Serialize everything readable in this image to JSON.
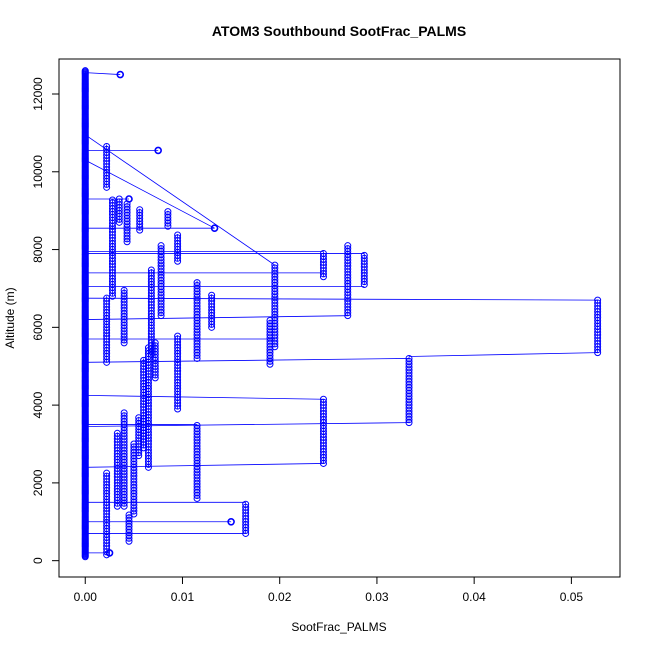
{
  "chart_data": {
    "type": "scatter",
    "title": "ATOM3 Southbound SootFrac_PALMS",
    "xlabel": "SootFrac_PALMS",
    "ylabel": "Altitude (m)",
    "xlim": [
      -0.0027,
      0.055
    ],
    "ylim": [
      -420,
      12900
    ],
    "xticks": [
      0,
      0.01,
      0.02,
      0.03,
      0.04,
      0.05
    ],
    "xtick_labels": [
      "0.00",
      "0.01",
      "0.02",
      "0.03",
      "0.04",
      "0.05"
    ],
    "yticks": [
      0,
      2000,
      4000,
      6000,
      8000,
      10000,
      12000
    ],
    "ytick_labels": [
      "0",
      "2000",
      "4000",
      "6000",
      "8000",
      "10000",
      "12000"
    ],
    "series_color": "#0000ff",
    "marker": "open-circle",
    "line_style": "connected-points",
    "columns": [
      {
        "x": 0,
        "y0": 100,
        "y1": 12600
      },
      {
        "x": 0.0022,
        "y0": 150,
        "y1": 2250
      },
      {
        "x": 0.0022,
        "y0": 5100,
        "y1": 6800
      },
      {
        "x": 0.0022,
        "y0": 9600,
        "y1": 10700
      },
      {
        "x": 0.0028,
        "y0": 6800,
        "y1": 9300
      },
      {
        "x": 0.0033,
        "y0": 1400,
        "y1": 3300
      },
      {
        "x": 0.0035,
        "y0": 8700,
        "y1": 9300
      },
      {
        "x": 0.004,
        "y0": 1400,
        "y1": 3800
      },
      {
        "x": 0.004,
        "y0": 5600,
        "y1": 7000
      },
      {
        "x": 0.0043,
        "y0": 8200,
        "y1": 9200
      },
      {
        "x": 0.0045,
        "y0": 500,
        "y1": 1200
      },
      {
        "x": 0.005,
        "y0": 1200,
        "y1": 3000
      },
      {
        "x": 0.0055,
        "y0": 2700,
        "y1": 3700
      },
      {
        "x": 0.0056,
        "y0": 8500,
        "y1": 9050
      },
      {
        "x": 0.006,
        "y0": 2900,
        "y1": 5200
      },
      {
        "x": 0.0065,
        "y0": 2400,
        "y1": 5500
      },
      {
        "x": 0.0068,
        "y0": 5300,
        "y1": 7500
      },
      {
        "x": 0.0072,
        "y0": 4700,
        "y1": 5600
      },
      {
        "x": 0.0078,
        "y0": 6300,
        "y1": 8100
      },
      {
        "x": 0.0085,
        "y0": 8600,
        "y1": 9000
      },
      {
        "x": 0.0095,
        "y0": 3900,
        "y1": 5800
      },
      {
        "x": 0.0095,
        "y0": 7700,
        "y1": 8400
      },
      {
        "x": 0.0115,
        "y0": 1600,
        "y1": 3500
      },
      {
        "x": 0.0115,
        "y0": 5200,
        "y1": 7200
      },
      {
        "x": 0.013,
        "y0": 6000,
        "y1": 6850
      },
      {
        "x": 0.0165,
        "y0": 700,
        "y1": 1500
      },
      {
        "x": 0.019,
        "y0": 5050,
        "y1": 6200
      },
      {
        "x": 0.0195,
        "y0": 5500,
        "y1": 7600
      },
      {
        "x": 0.0245,
        "y0": 2500,
        "y1": 4150
      },
      {
        "x": 0.0245,
        "y0": 7300,
        "y1": 7950
      },
      {
        "x": 0.027,
        "y0": 6300,
        "y1": 8100
      },
      {
        "x": 0.0287,
        "y0": 7100,
        "y1": 7900
      },
      {
        "x": 0.0333,
        "y0": 3550,
        "y1": 5250
      },
      {
        "x": 0.0527,
        "y0": 5350,
        "y1": 6700
      }
    ],
    "isolated_points": [
      {
        "x": 0.0036,
        "y": 12500
      },
      {
        "x": 0.0075,
        "y": 10550
      },
      {
        "x": 0.0045,
        "y": 9300
      },
      {
        "x": 0.0133,
        "y": 8550
      },
      {
        "x": 0.015,
        "y": 1000
      },
      {
        "x": 0.0025,
        "y": 200
      }
    ],
    "segments": [
      [
        [
          0,
          12550
        ],
        [
          0.0036,
          12500
        ]
      ],
      [
        [
          0,
          10950
        ],
        [
          0.0195,
          7600
        ]
      ],
      [
        [
          0,
          10550
        ],
        [
          0.0075,
          10550
        ]
      ],
      [
        [
          0,
          10300
        ],
        [
          0.0133,
          8550
        ]
      ],
      [
        [
          0,
          9300
        ],
        [
          0.0045,
          9300
        ]
      ],
      [
        [
          0,
          8550
        ],
        [
          0.0133,
          8550
        ]
      ],
      [
        [
          0,
          7950
        ],
        [
          0.0245,
          7950
        ]
      ],
      [
        [
          0,
          7900
        ],
        [
          0.0287,
          7900
        ]
      ],
      [
        [
          0,
          7400
        ],
        [
          0.0245,
          7400
        ]
      ],
      [
        [
          0,
          7050
        ],
        [
          0.0287,
          7050
        ]
      ],
      [
        [
          0,
          6750
        ],
        [
          0.0527,
          6700
        ]
      ],
      [
        [
          0,
          6200
        ],
        [
          0.027,
          6300
        ]
      ],
      [
        [
          0,
          5700
        ],
        [
          0.0195,
          5700
        ]
      ],
      [
        [
          0,
          5100
        ],
        [
          0.0333,
          5200
        ]
      ],
      [
        [
          0.0333,
          5250
        ],
        [
          0.0527,
          5350
        ]
      ],
      [
        [
          0,
          4250
        ],
        [
          0.0245,
          4150
        ]
      ],
      [
        [
          0,
          3450
        ],
        [
          0.0333,
          3550
        ]
      ],
      [
        [
          0,
          3500
        ],
        [
          0.0115,
          3500
        ]
      ],
      [
        [
          0,
          2400
        ],
        [
          0.0245,
          2500
        ]
      ],
      [
        [
          0,
          1500
        ],
        [
          0.0165,
          1500
        ]
      ],
      [
        [
          0,
          1000
        ],
        [
          0.015,
          1000
        ]
      ],
      [
        [
          0,
          700
        ],
        [
          0.0165,
          700
        ]
      ],
      [
        [
          0,
          200
        ],
        [
          0.0025,
          200
        ]
      ]
    ]
  }
}
